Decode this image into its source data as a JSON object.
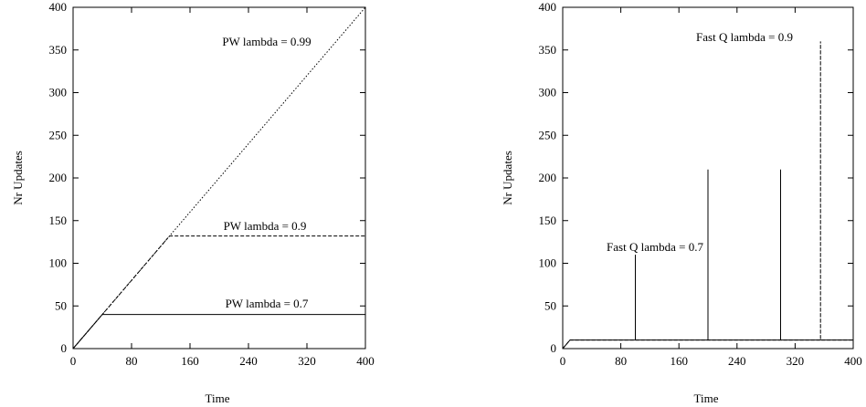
{
  "chart_data": [
    {
      "type": "line",
      "xlabel": "Time",
      "ylabel": "Nr Updates",
      "xlim": [
        0,
        400
      ],
      "ylim": [
        0,
        400
      ],
      "xticks": [
        "0",
        "80",
        "160",
        "240",
        "320",
        "400"
      ],
      "yticks": [
        "0",
        "50",
        "100",
        "150",
        "200",
        "250",
        "300",
        "350",
        "400"
      ],
      "grid": false,
      "series": [
        {
          "name": "PW lambda = 0.99",
          "style": "dotted",
          "x": [
            0,
            400
          ],
          "y": [
            0,
            400
          ]
        },
        {
          "name": "PW lambda = 0.9",
          "style": "dashed",
          "x": [
            0,
            132,
            400
          ],
          "y": [
            0,
            132,
            132
          ]
        },
        {
          "name": "PW lambda = 0.7",
          "style": "solid",
          "x": [
            0,
            40,
            400
          ],
          "y": [
            0,
            40,
            40
          ]
        }
      ]
    },
    {
      "type": "line",
      "xlabel": "Time",
      "ylabel": "Nr Updates",
      "xlim": [
        0,
        400
      ],
      "ylim": [
        0,
        400
      ],
      "xticks": [
        "0",
        "80",
        "160",
        "240",
        "320",
        "400"
      ],
      "yticks": [
        "0",
        "50",
        "100",
        "150",
        "200",
        "250",
        "300",
        "350",
        "400"
      ],
      "grid": false,
      "series": [
        {
          "name": "Fast Q lambda = 0.7",
          "style": "solid",
          "x": [
            0,
            10,
            100,
            100,
            100,
            200,
            200,
            200,
            300,
            300,
            300,
            400
          ],
          "y": [
            0,
            10,
            10,
            110,
            10,
            10,
            210,
            10,
            10,
            210,
            10,
            10
          ]
        },
        {
          "name": "Fast Q lambda = 0.9",
          "style": "dashed",
          "x": [
            0,
            10,
            355,
            355,
            355,
            400
          ],
          "y": [
            0,
            10,
            10,
            360,
            10,
            10
          ]
        }
      ],
      "annotations": [
        {
          "text": "Fast Q lambda = 0.7"
        },
        {
          "text": "Fast Q lambda = 0.9"
        }
      ]
    }
  ]
}
